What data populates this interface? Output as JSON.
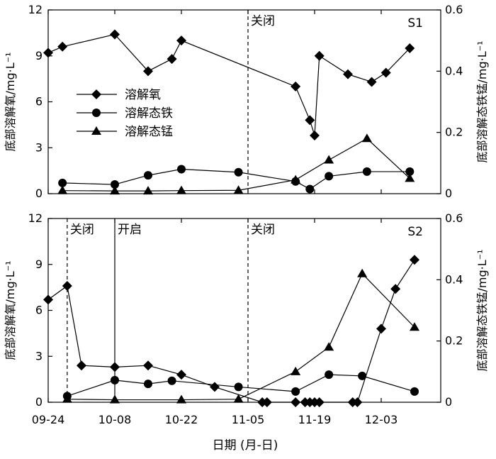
{
  "figure": {
    "xlabel": "日期 (月-日)",
    "x_tick_labels": [
      "09-24",
      "10-08",
      "10-22",
      "11-05",
      "11-19",
      "12-03"
    ]
  },
  "chart_data": [
    {
      "type": "line",
      "panel_label": "S1",
      "ylabel_left": "底部溶解氧/mg·L⁻¹",
      "ylabel_right": "底部溶解态铁锰/mg·L⁻¹",
      "ylim_left": [
        0,
        12
      ],
      "ylim_right": [
        0,
        0.6
      ],
      "yticks_left": [
        "0",
        "3",
        "6",
        "9",
        "12"
      ],
      "yticks_right": [
        "0",
        "0.2",
        "0.4",
        "0.6"
      ],
      "legend_placement": "left",
      "events": [
        {
          "date": "11-05",
          "label": "关闭",
          "style": "dashed"
        }
      ],
      "series": [
        {
          "name": "溶解氧",
          "marker": "diamond",
          "axis": "left",
          "x": [
            "09-24",
            "09-27",
            "10-08",
            "10-15",
            "10-20",
            "10-22",
            "11-15",
            "11-18",
            "11-19",
            "11-20",
            "11-26",
            "12-01",
            "12-04",
            "12-09"
          ],
          "y": [
            9.2,
            9.6,
            10.4,
            8.0,
            8.8,
            10.0,
            7.0,
            4.8,
            3.8,
            9.0,
            7.8,
            7.3,
            7.9,
            9.5
          ]
        },
        {
          "name": "溶解态铁",
          "marker": "circle",
          "axis": "right",
          "x": [
            "09-27",
            "10-08",
            "10-15",
            "10-22",
            "11-03",
            "11-15",
            "11-18",
            "11-22",
            "11-30",
            "12-09"
          ],
          "y": [
            0.035,
            0.03,
            0.06,
            0.08,
            0.07,
            0.04,
            0.015,
            0.057,
            0.072,
            0.072
          ]
        },
        {
          "name": "溶解态锰",
          "marker": "triangle",
          "axis": "right",
          "x": [
            "09-27",
            "10-08",
            "10-15",
            "10-22",
            "11-03",
            "11-15",
            "11-22",
            "11-30",
            "12-09"
          ],
          "y": [
            0.01,
            0.009,
            0.009,
            0.01,
            0.011,
            0.045,
            0.11,
            0.18,
            0.05
          ]
        }
      ]
    },
    {
      "type": "line",
      "panel_label": "S2",
      "ylabel_left": "底部溶解氧/mg·L⁻¹",
      "ylabel_right": "底部溶解态铁锰/mg·L⁻¹",
      "ylim_left": [
        0,
        12
      ],
      "ylim_right": [
        0,
        0.6
      ],
      "yticks_left": [
        "0",
        "3",
        "6",
        "9",
        "12"
      ],
      "yticks_right": [
        "0",
        "0.2",
        "0.4",
        "0.6"
      ],
      "events": [
        {
          "date": "09-28",
          "label": "关闭",
          "style": "dashed"
        },
        {
          "date": "10-08",
          "label": "开启",
          "style": "solid"
        },
        {
          "date": "11-05",
          "label": "关闭",
          "style": "dashed"
        }
      ],
      "series": [
        {
          "name": "溶解氧",
          "marker": "diamond",
          "axis": "left",
          "x": [
            "09-24",
            "09-28",
            "10-01",
            "10-08",
            "10-15",
            "10-22",
            "10-29",
            "11-08",
            "11-09",
            "11-15",
            "11-17",
            "11-18",
            "11-19",
            "11-20",
            "11-27",
            "11-28",
            "12-03",
            "12-06",
            "12-10"
          ],
          "y": [
            6.7,
            7.6,
            2.4,
            2.3,
            2.4,
            1.8,
            1.0,
            0.0,
            0.0,
            0.0,
            0.0,
            0.0,
            0.0,
            0.0,
            0.0,
            0.0,
            4.8,
            7.4,
            9.3
          ]
        },
        {
          "name": "溶解态铁",
          "marker": "circle",
          "axis": "right",
          "x": [
            "09-28",
            "10-08",
            "10-15",
            "10-20",
            "11-03",
            "11-15",
            "11-22",
            "11-29",
            "12-10"
          ],
          "y": [
            0.02,
            0.072,
            0.06,
            0.07,
            0.05,
            0.035,
            0.09,
            0.086,
            0.035
          ]
        },
        {
          "name": "溶解态锰",
          "marker": "triangle",
          "axis": "right",
          "x": [
            "09-28",
            "10-08",
            "10-22",
            "11-03",
            "11-15",
            "11-22",
            "11-29",
            "12-10"
          ],
          "y": [
            0.01,
            0.008,
            0.008,
            0.01,
            0.1,
            0.18,
            0.42,
            0.245
          ]
        }
      ]
    }
  ]
}
